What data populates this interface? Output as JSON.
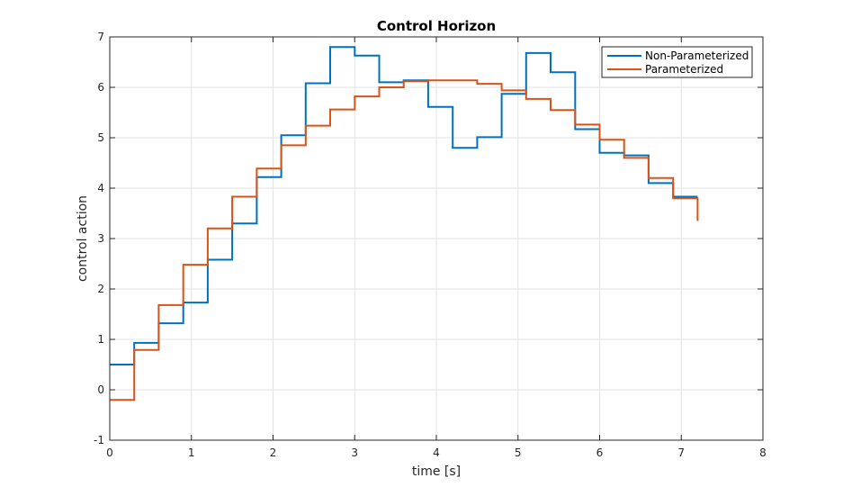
{
  "chart_data": {
    "type": "line",
    "step": true,
    "title": "Control Horizon",
    "xlabel": "time [s]",
    "ylabel": "control action",
    "xlim": [
      0,
      8
    ],
    "ylim": [
      -1,
      7
    ],
    "xticks": [
      "0",
      "1",
      "2",
      "3",
      "4",
      "5",
      "6",
      "7",
      "8"
    ],
    "yticks": [
      "-1",
      "0",
      "1",
      "2",
      "3",
      "4",
      "5",
      "6",
      "7"
    ],
    "grid": true,
    "legend_position": "top-right",
    "series": [
      {
        "name": "Non-Parameterized",
        "color": "#0072BD",
        "x": [
          0,
          0.3,
          0.6,
          0.9,
          1.2,
          1.5,
          1.8,
          2.1,
          2.4,
          2.7,
          3.0,
          3.3,
          3.6,
          3.9,
          4.2,
          4.5,
          4.8,
          5.1,
          5.4,
          5.7,
          6.0,
          6.3,
          6.6,
          6.9,
          7.2
        ],
        "y": [
          0.5,
          0.93,
          1.32,
          1.73,
          2.58,
          3.3,
          4.22,
          5.05,
          6.08,
          6.8,
          6.63,
          6.1,
          6.14,
          5.61,
          4.8,
          5.01,
          5.87,
          6.68,
          6.3,
          5.17,
          4.7,
          4.65,
          4.1,
          3.83,
          3.83
        ]
      },
      {
        "name": "Parameterized",
        "color": "#D95319",
        "x": [
          0,
          0.3,
          0.6,
          0.9,
          1.2,
          1.5,
          1.8,
          2.1,
          2.4,
          2.7,
          3.0,
          3.3,
          3.6,
          3.9,
          4.2,
          4.5,
          4.8,
          5.1,
          5.4,
          5.7,
          6.0,
          6.3,
          6.6,
          6.9,
          7.2
        ],
        "y": [
          -0.2,
          0.79,
          1.68,
          2.48,
          3.2,
          3.83,
          4.39,
          4.85,
          5.24,
          5.56,
          5.82,
          6.0,
          6.12,
          6.14,
          6.14,
          6.07,
          5.94,
          5.77,
          5.55,
          5.26,
          4.96,
          4.6,
          4.2,
          3.8,
          3.35
        ]
      }
    ]
  }
}
